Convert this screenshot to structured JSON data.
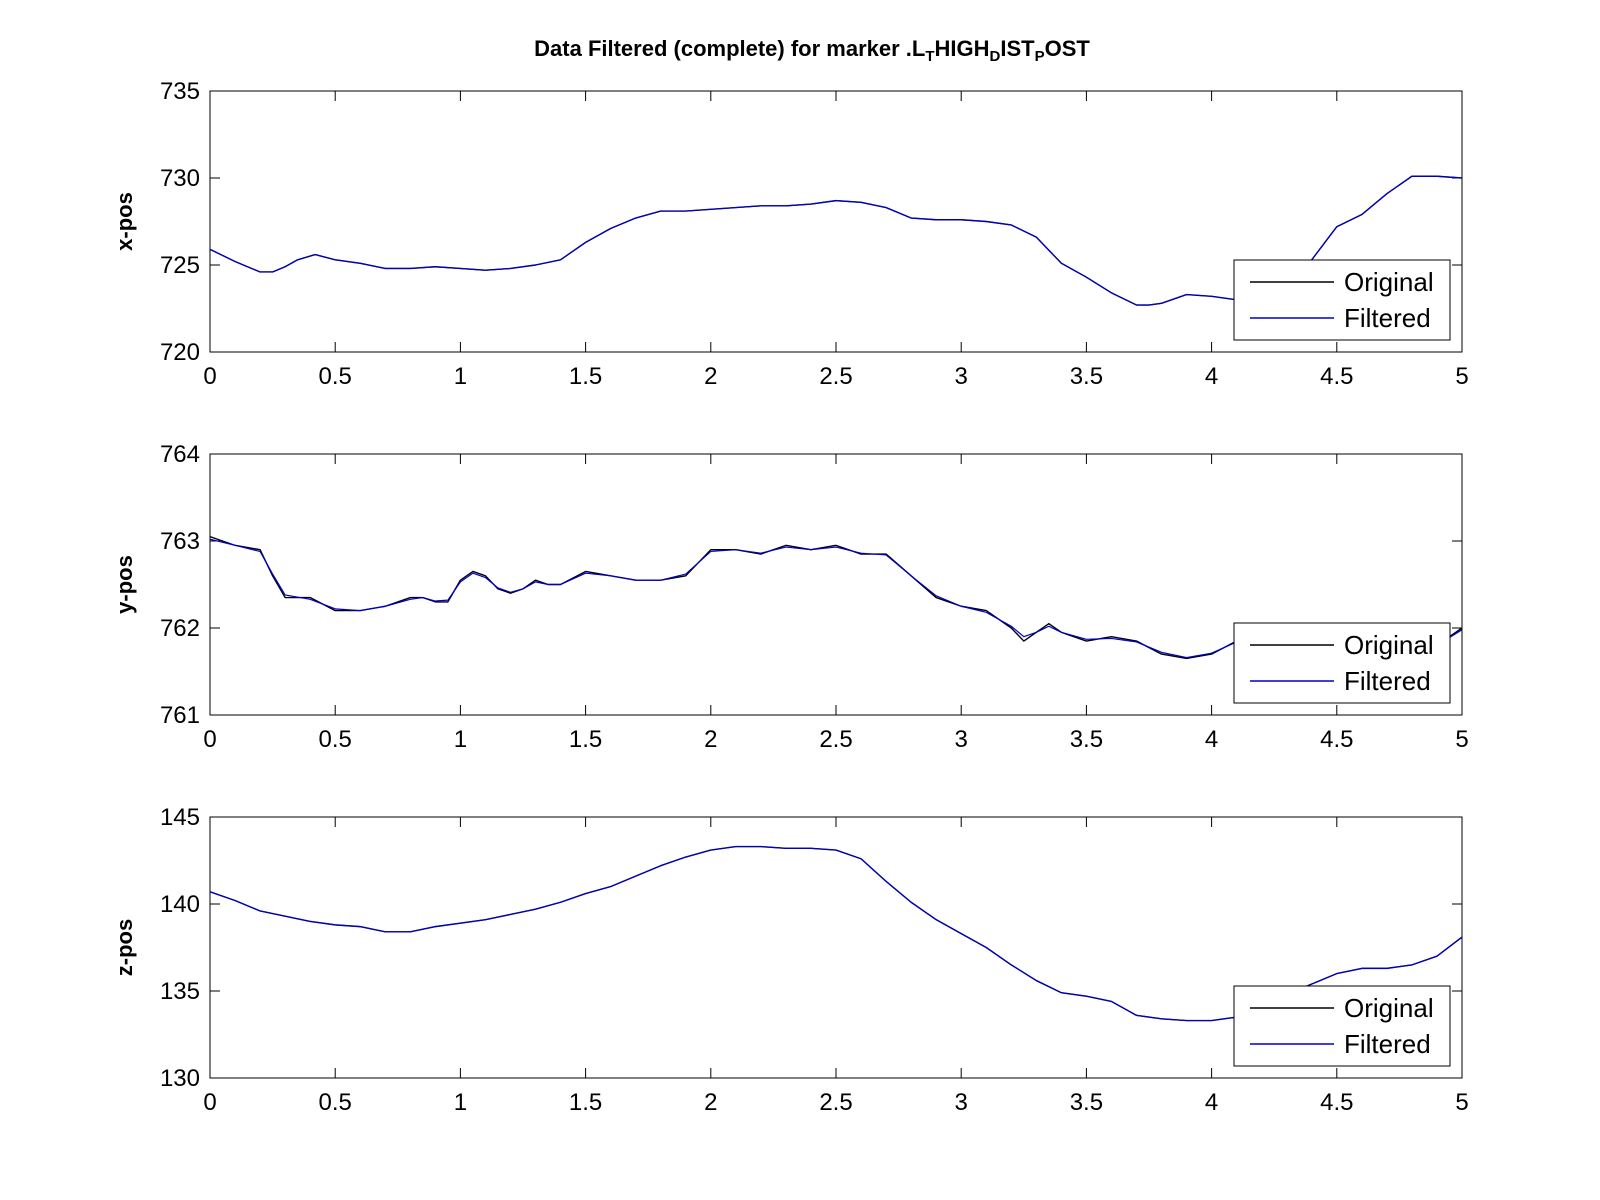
{
  "figure": {
    "title": {
      "parts": [
        {
          "t": "Data Filtered (complete) for marker .L",
          "sub": false
        },
        {
          "t": "T",
          "sub": true
        },
        {
          "t": "HIGH",
          "sub": false
        },
        {
          "t": "D",
          "sub": true
        },
        {
          "t": "IST",
          "sub": false
        },
        {
          "t": "P",
          "sub": true
        },
        {
          "t": "OST",
          "sub": false
        }
      ]
    }
  },
  "colors": {
    "original": "#000000",
    "filtered": "#0000cc",
    "axes": "#000000"
  },
  "chart_data": [
    {
      "type": "line",
      "xlabel": "",
      "ylabel": "x-pos",
      "xlim": [
        0,
        5
      ],
      "ylim": [
        720,
        735
      ],
      "xticks": [
        0,
        0.5,
        1,
        1.5,
        2,
        2.5,
        3,
        3.5,
        4,
        4.5,
        5
      ],
      "yticks": [
        720,
        725,
        730,
        735
      ],
      "legend_position": "bottom-right",
      "series": [
        {
          "name": "Original",
          "x": [
            0,
            0.1,
            0.2,
            0.25,
            0.3,
            0.35,
            0.42,
            0.5,
            0.6,
            0.7,
            0.8,
            0.9,
            1.0,
            1.1,
            1.2,
            1.3,
            1.4,
            1.5,
            1.6,
            1.7,
            1.8,
            1.9,
            2.0,
            2.1,
            2.2,
            2.3,
            2.4,
            2.5,
            2.6,
            2.7,
            2.8,
            2.9,
            3.0,
            3.1,
            3.2,
            3.3,
            3.4,
            3.5,
            3.6,
            3.7,
            3.75,
            3.8,
            3.9,
            4.0,
            4.1,
            4.2,
            4.3,
            4.4,
            4.5,
            4.6,
            4.7,
            4.8,
            4.9,
            5.0
          ],
          "y": [
            725.9,
            725.2,
            724.6,
            724.6,
            724.9,
            725.3,
            725.6,
            725.3,
            725.1,
            724.8,
            724.8,
            724.9,
            724.8,
            724.7,
            724.8,
            725.0,
            725.3,
            726.3,
            727.1,
            727.7,
            728.1,
            728.1,
            728.2,
            728.3,
            728.4,
            728.4,
            728.5,
            728.7,
            728.6,
            728.3,
            727.7,
            727.6,
            727.6,
            727.5,
            727.3,
            726.6,
            725.1,
            724.3,
            723.4,
            722.7,
            722.7,
            722.8,
            723.3,
            723.2,
            723.0,
            723.3,
            724.2,
            725.3,
            727.2,
            727.9,
            729.1,
            730.1,
            730.1,
            730.0
          ]
        },
        {
          "name": "Filtered",
          "x": [
            0,
            0.1,
            0.2,
            0.25,
            0.3,
            0.35,
            0.42,
            0.5,
            0.6,
            0.7,
            0.8,
            0.9,
            1.0,
            1.1,
            1.2,
            1.3,
            1.4,
            1.5,
            1.6,
            1.7,
            1.8,
            1.9,
            2.0,
            2.1,
            2.2,
            2.3,
            2.4,
            2.5,
            2.6,
            2.7,
            2.8,
            2.9,
            3.0,
            3.1,
            3.2,
            3.3,
            3.4,
            3.5,
            3.6,
            3.7,
            3.75,
            3.8,
            3.9,
            4.0,
            4.1,
            4.2,
            4.3,
            4.4,
            4.5,
            4.6,
            4.7,
            4.8,
            4.9,
            5.0
          ],
          "y": [
            725.9,
            725.2,
            724.6,
            724.6,
            724.9,
            725.3,
            725.6,
            725.3,
            725.1,
            724.8,
            724.8,
            724.9,
            724.8,
            724.7,
            724.8,
            725.0,
            725.3,
            726.3,
            727.1,
            727.7,
            728.1,
            728.1,
            728.2,
            728.3,
            728.4,
            728.4,
            728.5,
            728.7,
            728.6,
            728.3,
            727.7,
            727.6,
            727.6,
            727.5,
            727.3,
            726.6,
            725.1,
            724.3,
            723.4,
            722.7,
            722.7,
            722.8,
            723.3,
            723.2,
            723.0,
            723.3,
            724.2,
            725.3,
            727.2,
            727.9,
            729.1,
            730.1,
            730.1,
            730.0
          ]
        }
      ]
    },
    {
      "type": "line",
      "xlabel": "",
      "ylabel": "y-pos",
      "xlim": [
        0,
        5
      ],
      "ylim": [
        761,
        764
      ],
      "xticks": [
        0,
        0.5,
        1,
        1.5,
        2,
        2.5,
        3,
        3.5,
        4,
        4.5,
        5
      ],
      "yticks": [
        761,
        762,
        763,
        764
      ],
      "legend_position": "bottom-right",
      "series": [
        {
          "name": "Original",
          "x": [
            0,
            0.1,
            0.2,
            0.25,
            0.3,
            0.4,
            0.5,
            0.6,
            0.7,
            0.8,
            0.85,
            0.9,
            0.95,
            1.0,
            1.05,
            1.1,
            1.15,
            1.2,
            1.25,
            1.3,
            1.35,
            1.4,
            1.5,
            1.6,
            1.7,
            1.8,
            1.9,
            2.0,
            2.1,
            2.2,
            2.3,
            2.4,
            2.5,
            2.6,
            2.7,
            2.8,
            2.9,
            3.0,
            3.1,
            3.2,
            3.25,
            3.3,
            3.35,
            3.4,
            3.5,
            3.6,
            3.7,
            3.8,
            3.9,
            4.0,
            4.1,
            4.2,
            4.3,
            4.4,
            4.5,
            4.6,
            4.7,
            4.8,
            4.9,
            5.0
          ],
          "y": [
            763.05,
            762.95,
            762.9,
            762.6,
            762.35,
            762.35,
            762.2,
            762.2,
            762.25,
            762.35,
            762.35,
            762.3,
            762.3,
            762.55,
            762.65,
            762.6,
            762.45,
            762.4,
            762.45,
            762.55,
            762.5,
            762.5,
            762.65,
            762.6,
            762.55,
            762.55,
            762.6,
            762.9,
            762.9,
            762.85,
            762.95,
            762.9,
            762.95,
            762.85,
            762.85,
            762.6,
            762.35,
            762.25,
            762.2,
            762.0,
            761.85,
            761.95,
            762.05,
            761.95,
            761.85,
            761.9,
            761.85,
            761.7,
            761.65,
            761.7,
            761.85,
            761.95,
            762.0,
            762.0,
            761.9,
            761.7,
            761.6,
            761.65,
            761.8,
            762.0
          ]
        },
        {
          "name": "Filtered",
          "x": [
            0,
            0.1,
            0.2,
            0.25,
            0.3,
            0.4,
            0.5,
            0.6,
            0.7,
            0.8,
            0.85,
            0.9,
            0.95,
            1.0,
            1.05,
            1.1,
            1.15,
            1.2,
            1.25,
            1.3,
            1.35,
            1.4,
            1.5,
            1.6,
            1.7,
            1.8,
            1.9,
            2.0,
            2.1,
            2.2,
            2.3,
            2.4,
            2.5,
            2.6,
            2.7,
            2.8,
            2.9,
            3.0,
            3.1,
            3.2,
            3.25,
            3.3,
            3.35,
            3.4,
            3.5,
            3.6,
            3.7,
            3.8,
            3.9,
            4.0,
            4.1,
            4.2,
            4.3,
            4.4,
            4.5,
            4.6,
            4.7,
            4.8,
            4.9,
            5.0
          ],
          "y": [
            763.02,
            762.95,
            762.88,
            762.62,
            762.38,
            762.33,
            762.22,
            762.2,
            762.25,
            762.33,
            762.35,
            762.31,
            762.32,
            762.53,
            762.63,
            762.58,
            762.46,
            762.41,
            762.45,
            762.53,
            762.5,
            762.5,
            762.63,
            762.6,
            762.55,
            762.55,
            762.62,
            762.88,
            762.9,
            762.86,
            762.93,
            762.9,
            762.93,
            762.86,
            762.84,
            762.6,
            762.37,
            762.25,
            762.18,
            762.02,
            761.9,
            761.95,
            762.02,
            761.95,
            761.87,
            761.88,
            761.84,
            761.72,
            761.66,
            761.71,
            761.84,
            761.93,
            761.98,
            761.98,
            761.88,
            761.72,
            761.63,
            761.66,
            761.8,
            761.98
          ]
        }
      ]
    },
    {
      "type": "line",
      "xlabel": "",
      "ylabel": "z-pos",
      "xlim": [
        0,
        5
      ],
      "ylim": [
        130,
        145
      ],
      "xticks": [
        0,
        0.5,
        1,
        1.5,
        2,
        2.5,
        3,
        3.5,
        4,
        4.5,
        5
      ],
      "yticks": [
        130,
        135,
        140,
        145
      ],
      "legend_position": "bottom-right",
      "series": [
        {
          "name": "Original",
          "x": [
            0,
            0.1,
            0.2,
            0.3,
            0.4,
            0.5,
            0.6,
            0.7,
            0.8,
            0.9,
            1.0,
            1.1,
            1.2,
            1.3,
            1.4,
            1.5,
            1.6,
            1.7,
            1.8,
            1.9,
            2.0,
            2.1,
            2.2,
            2.3,
            2.4,
            2.5,
            2.6,
            2.7,
            2.8,
            2.9,
            3.0,
            3.1,
            3.2,
            3.3,
            3.4,
            3.5,
            3.6,
            3.7,
            3.8,
            3.9,
            4.0,
            4.1,
            4.2,
            4.3,
            4.4,
            4.5,
            4.6,
            4.7,
            4.8,
            4.9,
            5.0
          ],
          "y": [
            140.7,
            140.2,
            139.6,
            139.3,
            139.0,
            138.8,
            138.7,
            138.4,
            138.4,
            138.7,
            138.9,
            139.1,
            139.4,
            139.7,
            140.1,
            140.6,
            141.0,
            141.6,
            142.2,
            142.7,
            143.1,
            143.3,
            143.3,
            143.2,
            143.2,
            143.1,
            142.6,
            141.3,
            140.1,
            139.1,
            138.3,
            137.5,
            136.5,
            135.6,
            134.9,
            134.7,
            134.4,
            133.6,
            133.4,
            133.3,
            133.3,
            133.5,
            134.1,
            134.8,
            135.4,
            136.0,
            136.3,
            136.3,
            136.5,
            137.0,
            138.1
          ]
        },
        {
          "name": "Filtered",
          "x": [
            0,
            0.1,
            0.2,
            0.3,
            0.4,
            0.5,
            0.6,
            0.7,
            0.8,
            0.9,
            1.0,
            1.1,
            1.2,
            1.3,
            1.4,
            1.5,
            1.6,
            1.7,
            1.8,
            1.9,
            2.0,
            2.1,
            2.2,
            2.3,
            2.4,
            2.5,
            2.6,
            2.7,
            2.8,
            2.9,
            3.0,
            3.1,
            3.2,
            3.3,
            3.4,
            3.5,
            3.6,
            3.7,
            3.8,
            3.9,
            4.0,
            4.1,
            4.2,
            4.3,
            4.4,
            4.5,
            4.6,
            4.7,
            4.8,
            4.9,
            5.0
          ],
          "y": [
            140.7,
            140.2,
            139.6,
            139.3,
            139.0,
            138.8,
            138.7,
            138.4,
            138.4,
            138.7,
            138.9,
            139.1,
            139.4,
            139.7,
            140.1,
            140.6,
            141.0,
            141.6,
            142.2,
            142.7,
            143.1,
            143.3,
            143.3,
            143.2,
            143.2,
            143.1,
            142.6,
            141.3,
            140.1,
            139.1,
            138.3,
            137.5,
            136.5,
            135.6,
            134.9,
            134.7,
            134.4,
            133.6,
            133.4,
            133.3,
            133.3,
            133.5,
            134.1,
            134.8,
            135.4,
            136.0,
            136.3,
            136.3,
            136.5,
            137.0,
            138.1
          ]
        }
      ]
    }
  ]
}
